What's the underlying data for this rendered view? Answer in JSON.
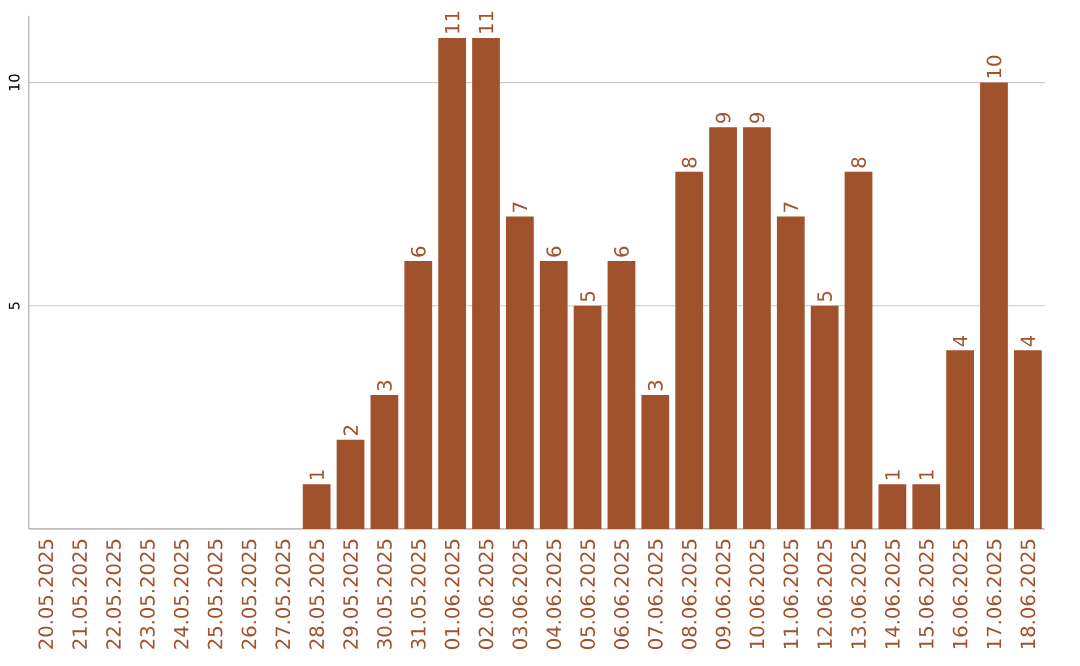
{
  "chart_data": {
    "type": "bar",
    "categories": [
      "20.05.2025",
      "21.05.2025",
      "22.05.2025",
      "23.05.2025",
      "24.05.2025",
      "25.05.2025",
      "26.05.2025",
      "27.05.2025",
      "28.05.2025",
      "29.05.2025",
      "30.05.2025",
      "31.05.2025",
      "01.06.2025",
      "02.06.2025",
      "03.06.2025",
      "04.06.2025",
      "05.06.2025",
      "06.06.2025",
      "07.06.2025",
      "08.06.2025",
      "09.06.2025",
      "10.06.2025",
      "11.06.2025",
      "12.06.2025",
      "13.06.2025",
      "14.06.2025",
      "15.06.2025",
      "16.06.2025",
      "17.06.2025",
      "18.06.2025"
    ],
    "values": [
      0,
      0,
      0,
      0,
      0,
      0,
      0,
      0,
      1,
      2,
      3,
      6,
      11,
      11,
      7,
      6,
      5,
      6,
      3,
      8,
      9,
      9,
      7,
      5,
      8,
      1,
      1,
      4,
      10,
      4
    ],
    "value_labels": [
      null,
      null,
      null,
      null,
      null,
      null,
      null,
      null,
      "1",
      "2",
      "3",
      "6",
      "11",
      "11",
      "7",
      "6",
      "5",
      "6",
      "3",
      "8",
      "9",
      "9",
      "7",
      "5",
      "8",
      "1",
      "1",
      "4",
      "10",
      "4"
    ],
    "color": "#a0522d",
    "ylim": [
      0,
      11.5
    ],
    "yticks": [
      5,
      10
    ],
    "grid": "y"
  }
}
